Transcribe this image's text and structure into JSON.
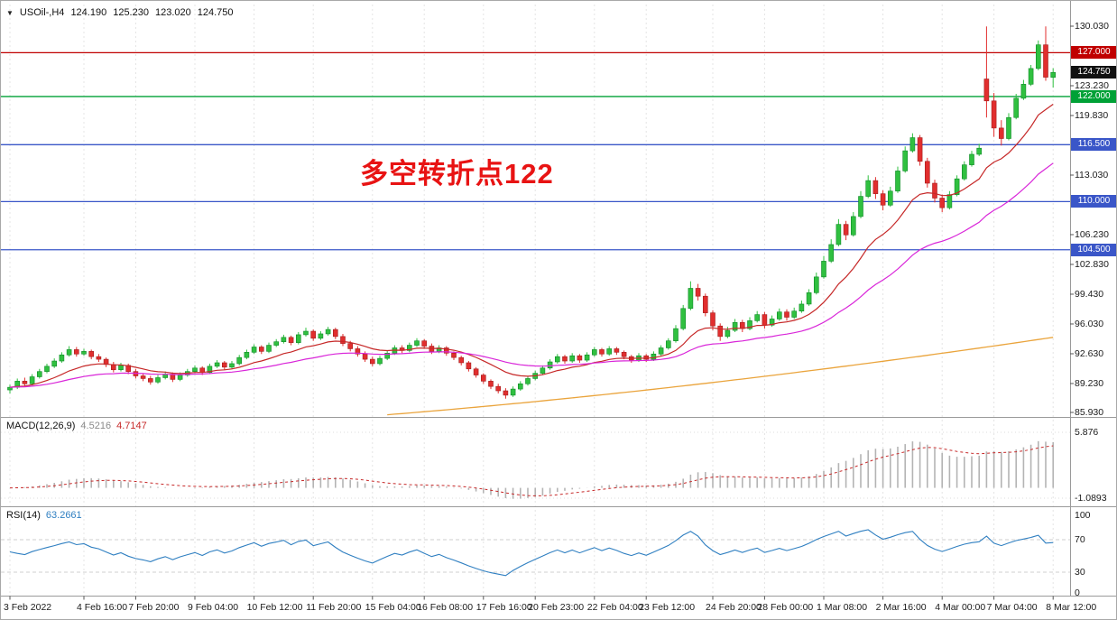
{
  "window": {
    "symbol_timeframe": "USOil-,H4",
    "ohlc": {
      "open": "124.190",
      "high": "125.230",
      "low": "123.020",
      "close": "124.750"
    }
  },
  "annotation": {
    "text": "多空转折点122",
    "color": "#e81313"
  },
  "macd_panel": {
    "label": "MACD(12,26,9)",
    "main_value": "4.5216",
    "signal_value": "4.7147",
    "axis": [
      {
        "text": "5.876",
        "value": 5.876
      },
      {
        "text": "-1.0893",
        "value": -1.0893
      }
    ]
  },
  "rsi_panel": {
    "label": "RSI(14)",
    "value": "63.2661",
    "axis": [
      {
        "text": "100",
        "value": 100
      },
      {
        "text": "70",
        "value": 70
      },
      {
        "text": "30",
        "value": 30
      },
      {
        "text": "0",
        "value": 0
      }
    ],
    "levels": [
      70,
      30
    ]
  },
  "price_axis": {
    "labels": [
      {
        "text": "130.030",
        "value": 130.03
      },
      {
        "text": "123.230",
        "value": 123.23
      },
      {
        "text": "119.830",
        "value": 119.83
      },
      {
        "text": "113.030",
        "value": 113.03
      },
      {
        "text": "106.230",
        "value": 106.23
      },
      {
        "text": "102.830",
        "value": 102.83
      },
      {
        "text": "99.430",
        "value": 99.43
      },
      {
        "text": "96.030",
        "value": 96.03
      },
      {
        "text": "92.630",
        "value": 92.63
      },
      {
        "text": "89.230",
        "value": 89.23
      },
      {
        "text": "85.930",
        "value": 85.93
      }
    ],
    "badges": [
      {
        "text": "127.000",
        "value": 127.0,
        "bg": "#c00000",
        "name": "resistance-level-badge"
      },
      {
        "text": "124.750",
        "value": 124.75,
        "bg": "#111111",
        "name": "current-price-badge"
      },
      {
        "text": "122.000",
        "value": 122.0,
        "bg": "#00a136",
        "name": "pivot-level-badge"
      },
      {
        "text": "116.500",
        "value": 116.5,
        "bg": "#3a56c8",
        "name": "support-level-badge"
      },
      {
        "text": "110.000",
        "value": 110.0,
        "bg": "#3a56c8",
        "name": "support-level-badge"
      },
      {
        "text": "104.500",
        "value": 104.5,
        "bg": "#3a56c8",
        "name": "support-level-badge"
      }
    ]
  },
  "chart_data": {
    "type": "candlestick",
    "symbol": "USOil-",
    "timeframe": "H4",
    "title": "USOil- H4 with MACD(12,26,9) and RSI(14)",
    "y_axis": {
      "min": 85.93,
      "max": 130.03,
      "tick_step": 3.4
    },
    "h_lines": [
      {
        "value": 127.0,
        "color": "#c00000"
      },
      {
        "value": 122.0,
        "color": "#00a136"
      },
      {
        "value": 116.5,
        "color": "#3a56c8"
      },
      {
        "value": 110.0,
        "color": "#3a56c8"
      },
      {
        "value": 104.5,
        "color": "#3a56c8"
      }
    ],
    "up_color": "#30c040",
    "down_color": "#e12e2e",
    "overlays": [
      {
        "name": "ma-fast",
        "color": "#c62828"
      },
      {
        "name": "ma-mid",
        "color": "#d926d9"
      },
      {
        "name": "ma-slow",
        "color": "#eaa43c"
      }
    ],
    "x_labels": [
      {
        "text": "3 Feb 2022",
        "index": 0
      },
      {
        "text": "4 Feb 16:00",
        "index": 10
      },
      {
        "text": "7 Feb 20:00",
        "index": 17
      },
      {
        "text": "9 Feb 04:00",
        "index": 25
      },
      {
        "text": "10 Feb 12:00",
        "index": 33
      },
      {
        "text": "11 Feb 20:00",
        "index": 41
      },
      {
        "text": "15 Feb 04:00",
        "index": 49
      },
      {
        "text": "16 Feb 08:00",
        "index": 56
      },
      {
        "text": "17 Feb 16:00",
        "index": 64
      },
      {
        "text": "20 Feb 23:00",
        "index": 71
      },
      {
        "text": "22 Feb 04:00",
        "index": 79
      },
      {
        "text": "23 Feb 12:00",
        "index": 86
      },
      {
        "text": "24 Feb 20:00",
        "index": 95
      },
      {
        "text": "28 Feb 00:00",
        "index": 102
      },
      {
        "text": "1 Mar 08:00",
        "index": 110
      },
      {
        "text": "2 Mar 16:00",
        "index": 118
      },
      {
        "text": "4 Mar 00:00",
        "index": 126
      },
      {
        "text": "7 Mar 04:00",
        "index": 133
      },
      {
        "text": "8 Mar 12:00",
        "index": 141
      }
    ],
    "candles_ohlc": [
      [
        88.5,
        89.1,
        88.1,
        88.8
      ],
      [
        88.8,
        89.8,
        88.6,
        89.5
      ],
      [
        89.5,
        89.9,
        88.9,
        89.2
      ],
      [
        89.2,
        90.3,
        89.0,
        90.0
      ],
      [
        90.0,
        90.9,
        89.8,
        90.6
      ],
      [
        90.6,
        91.5,
        90.4,
        91.2
      ],
      [
        91.2,
        92.1,
        91.0,
        91.8
      ],
      [
        91.8,
        92.8,
        91.6,
        92.5
      ],
      [
        92.5,
        93.5,
        92.3,
        93.1
      ],
      [
        93.1,
        93.4,
        92.3,
        92.6
      ],
      [
        92.6,
        93.2,
        92.4,
        92.9
      ],
      [
        92.9,
        93.1,
        92.0,
        92.3
      ],
      [
        92.3,
        92.6,
        91.7,
        92.0
      ],
      [
        92.0,
        92.2,
        91.1,
        91.4
      ],
      [
        91.4,
        91.7,
        90.5,
        90.8
      ],
      [
        90.8,
        91.6,
        90.6,
        91.3
      ],
      [
        91.3,
        91.5,
        90.3,
        90.6
      ],
      [
        90.6,
        90.9,
        89.8,
        90.1
      ],
      [
        90.1,
        90.4,
        89.5,
        89.8
      ],
      [
        89.8,
        90.1,
        89.1,
        89.4
      ],
      [
        89.4,
        90.2,
        89.2,
        89.9
      ],
      [
        89.9,
        90.6,
        89.7,
        90.3
      ],
      [
        90.3,
        90.5,
        89.4,
        89.7
      ],
      [
        89.7,
        90.5,
        89.5,
        90.2
      ],
      [
        90.2,
        90.9,
        90.0,
        90.6
      ],
      [
        90.6,
        91.3,
        90.4,
        91.0
      ],
      [
        91.0,
        91.2,
        90.2,
        90.5
      ],
      [
        90.5,
        91.5,
        90.3,
        91.2
      ],
      [
        91.2,
        91.9,
        91.0,
        91.6
      ],
      [
        91.6,
        91.8,
        90.8,
        91.1
      ],
      [
        91.1,
        91.8,
        90.9,
        91.5
      ],
      [
        91.5,
        92.5,
        91.3,
        92.2
      ],
      [
        92.2,
        93.1,
        92.0,
        92.8
      ],
      [
        92.8,
        93.7,
        92.6,
        93.4
      ],
      [
        93.4,
        93.6,
        92.6,
        92.9
      ],
      [
        92.9,
        93.9,
        92.7,
        93.6
      ],
      [
        93.6,
        94.3,
        93.4,
        94.0
      ],
      [
        94.0,
        94.8,
        93.8,
        94.5
      ],
      [
        94.5,
        94.7,
        93.6,
        93.9
      ],
      [
        93.9,
        95.1,
        93.7,
        94.8
      ],
      [
        94.8,
        95.6,
        94.6,
        95.2
      ],
      [
        95.2,
        95.4,
        94.1,
        94.4
      ],
      [
        94.4,
        95.2,
        94.2,
        94.9
      ],
      [
        94.9,
        95.7,
        94.7,
        95.4
      ],
      [
        95.4,
        95.6,
        94.3,
        94.6
      ],
      [
        94.6,
        94.9,
        93.5,
        93.8
      ],
      [
        93.8,
        94.1,
        92.9,
        93.2
      ],
      [
        93.2,
        93.5,
        92.3,
        92.6
      ],
      [
        92.6,
        92.9,
        91.7,
        92.0
      ],
      [
        92.0,
        92.3,
        91.2,
        91.5
      ],
      [
        91.5,
        92.4,
        91.3,
        92.1
      ],
      [
        92.1,
        93.0,
        91.9,
        92.7
      ],
      [
        92.7,
        93.6,
        92.5,
        93.3
      ],
      [
        93.3,
        93.6,
        92.7,
        93.0
      ],
      [
        93.0,
        93.9,
        92.8,
        93.6
      ],
      [
        93.6,
        94.4,
        93.4,
        94.1
      ],
      [
        94.1,
        94.3,
        93.2,
        93.5
      ],
      [
        93.5,
        93.8,
        92.6,
        92.9
      ],
      [
        92.9,
        93.6,
        92.7,
        93.3
      ],
      [
        93.3,
        93.5,
        92.4,
        92.7
      ],
      [
        92.7,
        92.9,
        91.9,
        92.2
      ],
      [
        92.2,
        92.4,
        91.3,
        91.6
      ],
      [
        91.6,
        91.8,
        90.6,
        90.9
      ],
      [
        90.9,
        91.1,
        89.9,
        90.2
      ],
      [
        90.2,
        90.4,
        89.2,
        89.5
      ],
      [
        89.5,
        89.7,
        88.6,
        88.9
      ],
      [
        88.9,
        89.2,
        88.1,
        88.4
      ],
      [
        88.4,
        88.7,
        87.5,
        87.9
      ],
      [
        87.9,
        88.9,
        87.7,
        88.6
      ],
      [
        88.6,
        89.5,
        88.4,
        89.2
      ],
      [
        89.2,
        90.1,
        89.0,
        89.8
      ],
      [
        89.8,
        90.7,
        89.6,
        90.4
      ],
      [
        90.4,
        91.3,
        90.2,
        91.0
      ],
      [
        91.0,
        92.0,
        90.8,
        91.7
      ],
      [
        91.7,
        92.6,
        91.5,
        92.3
      ],
      [
        92.3,
        92.5,
        91.5,
        91.8
      ],
      [
        91.8,
        92.7,
        91.6,
        92.4
      ],
      [
        92.4,
        92.6,
        91.6,
        91.9
      ],
      [
        91.9,
        92.8,
        91.7,
        92.5
      ],
      [
        92.5,
        93.4,
        92.3,
        93.1
      ],
      [
        93.1,
        93.3,
        92.3,
        92.6
      ],
      [
        92.6,
        93.5,
        92.4,
        93.2
      ],
      [
        93.2,
        93.4,
        92.5,
        92.8
      ],
      [
        92.8,
        93.0,
        92.0,
        92.3
      ],
      [
        92.3,
        92.5,
        91.6,
        91.9
      ],
      [
        91.9,
        92.7,
        91.7,
        92.4
      ],
      [
        92.4,
        92.6,
        91.7,
        92.0
      ],
      [
        92.0,
        92.9,
        91.8,
        92.6
      ],
      [
        92.6,
        93.6,
        92.4,
        93.3
      ],
      [
        93.3,
        94.4,
        93.1,
        94.1
      ],
      [
        94.1,
        95.9,
        93.9,
        95.5
      ],
      [
        95.5,
        98.2,
        95.3,
        97.8
      ],
      [
        97.8,
        100.9,
        97.6,
        100.1
      ],
      [
        100.1,
        100.6,
        98.7,
        99.2
      ],
      [
        99.2,
        99.5,
        96.9,
        97.3
      ],
      [
        97.3,
        97.6,
        95.3,
        95.8
      ],
      [
        95.8,
        96.1,
        94.1,
        94.6
      ],
      [
        94.6,
        95.7,
        94.4,
        95.3
      ],
      [
        95.3,
        96.6,
        95.1,
        96.2
      ],
      [
        96.2,
        96.5,
        95.1,
        95.5
      ],
      [
        95.5,
        96.8,
        95.3,
        96.4
      ],
      [
        96.4,
        97.5,
        96.2,
        97.1
      ],
      [
        97.1,
        97.4,
        95.5,
        95.9
      ],
      [
        95.9,
        97.0,
        95.7,
        96.6
      ],
      [
        96.6,
        97.8,
        96.4,
        97.4
      ],
      [
        97.4,
        97.7,
        96.4,
        96.8
      ],
      [
        96.8,
        97.9,
        96.6,
        97.5
      ],
      [
        97.5,
        98.7,
        97.3,
        98.3
      ],
      [
        98.3,
        100.0,
        98.1,
        99.6
      ],
      [
        99.6,
        101.9,
        99.4,
        101.4
      ],
      [
        101.4,
        103.8,
        101.2,
        103.2
      ],
      [
        103.2,
        105.7,
        103.0,
        105.1
      ],
      [
        105.1,
        108.0,
        104.9,
        107.4
      ],
      [
        107.4,
        107.8,
        105.6,
        106.2
      ],
      [
        106.2,
        108.8,
        106.0,
        108.3
      ],
      [
        108.3,
        111.2,
        108.1,
        110.6
      ],
      [
        110.6,
        113.0,
        110.4,
        112.4
      ],
      [
        112.4,
        112.8,
        110.3,
        110.9
      ],
      [
        110.9,
        111.3,
        109.0,
        109.6
      ],
      [
        109.6,
        111.7,
        109.4,
        111.2
      ],
      [
        111.2,
        114.0,
        111.0,
        113.5
      ],
      [
        113.5,
        116.3,
        113.3,
        115.8
      ],
      [
        115.8,
        117.8,
        115.6,
        117.3
      ],
      [
        117.3,
        117.6,
        114.1,
        114.6
      ],
      [
        114.6,
        115.0,
        111.6,
        112.1
      ],
      [
        112.1,
        112.5,
        109.9,
        110.4
      ],
      [
        110.4,
        110.8,
        108.8,
        109.3
      ],
      [
        109.3,
        111.2,
        109.1,
        110.8
      ],
      [
        110.8,
        113.0,
        110.6,
        112.6
      ],
      [
        112.6,
        114.6,
        112.4,
        114.2
      ],
      [
        114.2,
        115.8,
        114.0,
        115.4
      ],
      [
        115.4,
        116.6,
        115.2,
        116.1
      ],
      [
        124.0,
        130.0,
        119.6,
        121.5
      ],
      [
        121.5,
        122.4,
        117.4,
        118.4
      ],
      [
        118.4,
        119.3,
        116.4,
        117.2
      ],
      [
        117.2,
        120.1,
        117.0,
        119.6
      ],
      [
        119.6,
        122.3,
        119.4,
        121.8
      ],
      [
        121.8,
        123.9,
        121.6,
        123.4
      ],
      [
        123.4,
        125.6,
        123.2,
        125.2
      ],
      [
        125.2,
        128.4,
        125.0,
        127.9
      ],
      [
        127.9,
        130.0,
        123.8,
        124.2
      ],
      [
        124.19,
        125.23,
        123.02,
        124.75
      ]
    ]
  }
}
